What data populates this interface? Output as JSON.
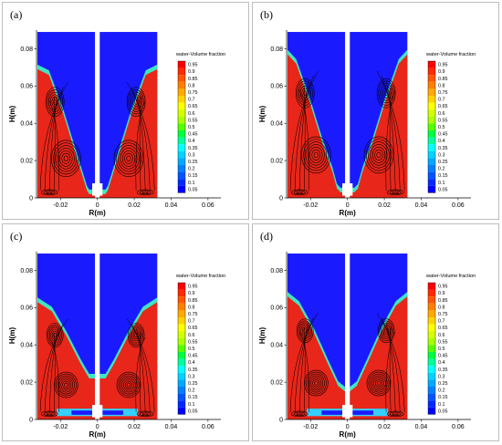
{
  "panels": [
    {
      "id": "a",
      "tag": "(a)",
      "interface": [
        [
          0,
          0.069
        ],
        [
          0.2,
          0.066
        ],
        [
          0.45,
          0.045
        ],
        [
          0.62,
          0.028
        ],
        [
          0.78,
          0.012
        ],
        [
          0.86,
          0.004
        ],
        [
          0.9,
          0.002
        ],
        [
          1,
          0.002
        ]
      ],
      "gap": false
    },
    {
      "id": "b",
      "tag": "(b)",
      "interface": [
        [
          0,
          0.077
        ],
        [
          0.15,
          0.072
        ],
        [
          0.4,
          0.05
        ],
        [
          0.6,
          0.03
        ],
        [
          0.78,
          0.014
        ],
        [
          0.86,
          0.005
        ],
        [
          0.92,
          0.003
        ],
        [
          1,
          0.003
        ]
      ],
      "gap": false
    },
    {
      "id": "c",
      "tag": "(c)",
      "interface": [
        [
          0,
          0.063
        ],
        [
          0.25,
          0.058
        ],
        [
          0.5,
          0.045
        ],
        [
          0.75,
          0.03
        ],
        [
          0.9,
          0.022
        ],
        [
          1,
          0.022
        ]
      ],
      "gap": true
    },
    {
      "id": "d",
      "tag": "(d)",
      "interface": [
        [
          0,
          0.066
        ],
        [
          0.2,
          0.061
        ],
        [
          0.45,
          0.047
        ],
        [
          0.7,
          0.03
        ],
        [
          0.88,
          0.018
        ],
        [
          1,
          0.015
        ]
      ],
      "gap": true
    }
  ],
  "axes": {
    "xlabel": "R(m)",
    "ylabel": "H(m)",
    "xticks": [
      "-0.02",
      "0",
      "0.02",
      "0.04",
      "0.06"
    ],
    "yticks": [
      "0",
      "0.02",
      "0.04",
      "0.06",
      "0.08"
    ]
  },
  "legend": {
    "title": "water-Volume fraction",
    "levels": [
      "0.95",
      "0.9",
      "0.85",
      "0.8",
      "0.75",
      "0.7",
      "0.65",
      "0.6",
      "0.55",
      "0.5",
      "0.45",
      "0.4",
      "0.35",
      "0.3",
      "0.25",
      "0.2",
      "0.15",
      "0.1",
      "0.05"
    ]
  },
  "colors": {
    "air": "#1a1aff",
    "water": "#e8261a",
    "stream": "#000000"
  }
}
